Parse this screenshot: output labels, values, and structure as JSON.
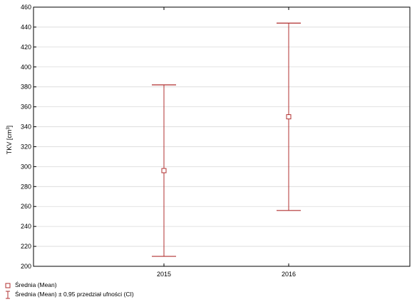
{
  "chart_data": {
    "type": "errorbar",
    "ylabel": "TKV [cm",
    "ylabel_sup": "3",
    "ylabel_end": "]",
    "xlabel": "",
    "categories": [
      "2015",
      "2016"
    ],
    "series": [
      {
        "mean": [
          296,
          350
        ],
        "ci_lower": [
          210,
          256
        ],
        "ci_upper": [
          382,
          444
        ]
      }
    ],
    "ylim": [
      200,
      460
    ],
    "yticks": [
      200,
      220,
      240,
      260,
      280,
      300,
      320,
      340,
      360,
      380,
      400,
      420,
      440,
      460
    ],
    "grid": true,
    "color": "#b03030"
  },
  "legend": {
    "mean_label": "Średnia (Mean)",
    "ci_label": "Średnia (Mean) ± 0,95 przedział ufności (CI)"
  }
}
